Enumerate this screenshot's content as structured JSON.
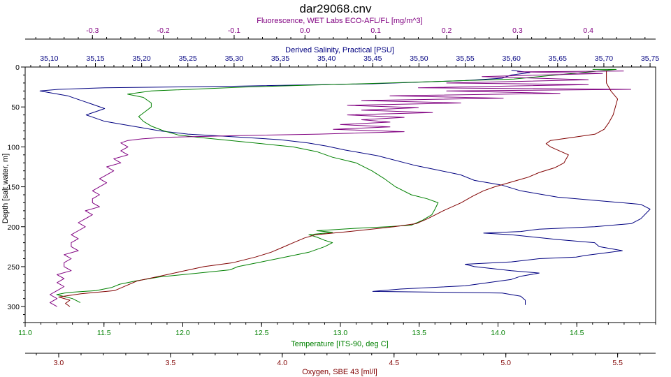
{
  "chart_data": {
    "type": "line",
    "title": "dar29068.cnv",
    "ylabel": "Depth [salt water, m]",
    "ylim": [
      320,
      0
    ],
    "yticks": [
      0,
      50,
      100,
      150,
      200,
      250,
      300
    ],
    "grid": false,
    "axes": {
      "fluorescence": {
        "label": "Fluorescence, WET Labs ECO-AFL/FL [mg/m^3]",
        "color": "#800080",
        "range": [
          -0.395,
          0.495
        ],
        "ticks": [
          -0.3,
          -0.2,
          -0.1,
          0.0,
          0.1,
          0.2,
          0.3,
          0.4
        ],
        "tick_labels": [
          "-0.3",
          "-0.2",
          "-0.1",
          "0.0",
          "0.1",
          "0.2",
          "0.3",
          "0.4"
        ]
      },
      "salinity": {
        "label": "Derived Salinity, Practical [PSU]",
        "color": "#000080",
        "range": [
          35.074,
          35.756
        ],
        "ticks": [
          35.1,
          35.15,
          35.2,
          35.25,
          35.3,
          35.35,
          35.4,
          35.45,
          35.5,
          35.55,
          35.6,
          35.65,
          35.7,
          35.75
        ],
        "tick_labels": [
          "35,10",
          "35,15",
          "35,20",
          "35,25",
          "35,30",
          "35,35",
          "35,40",
          "35,45",
          "35,50",
          "35,55",
          "35,60",
          "35,65",
          "35,70",
          "35,75"
        ]
      },
      "temperature": {
        "label": "Temperature [ITS-90, deg C]",
        "color": "#008000",
        "range": [
          11.0,
          15.0
        ],
        "ticks": [
          11.0,
          11.5,
          12.0,
          12.5,
          13.0,
          13.5,
          14.0,
          14.5
        ],
        "tick_labels": [
          "11.0",
          "11.5",
          "12.0",
          "12.5",
          "13.0",
          "13.5",
          "14.0",
          "14.5"
        ]
      },
      "oxygen": {
        "label": "Oxygen, SBE 43 [ml/l]",
        "color": "#800000",
        "range": [
          2.85,
          5.67
        ],
        "ticks": [
          3.0,
          3.5,
          4.0,
          4.5,
          5.0,
          5.5
        ],
        "tick_labels": [
          "3.0",
          "3.5",
          "4.0",
          "4.5",
          "5.0",
          "5.5"
        ]
      }
    },
    "series": [
      {
        "axis": "salinity",
        "color": "#000080",
        "points": [
          [
            35.615,
            298
          ],
          [
            35.615,
            292
          ],
          [
            35.61,
            287
          ],
          [
            35.59,
            283
          ],
          [
            35.45,
            281
          ],
          [
            35.48,
            278
          ],
          [
            35.55,
            274
          ],
          [
            35.6,
            266
          ],
          [
            35.61,
            262
          ],
          [
            35.63,
            258
          ],
          [
            35.6,
            255
          ],
          [
            35.56,
            250
          ],
          [
            35.55,
            247
          ],
          [
            35.6,
            244
          ],
          [
            35.63,
            240
          ],
          [
            35.67,
            238
          ],
          [
            35.68,
            236
          ],
          [
            35.7,
            233
          ],
          [
            35.72,
            230
          ],
          [
            35.695,
            225
          ],
          [
            35.69,
            220
          ],
          [
            35.65,
            216
          ],
          [
            35.6,
            210
          ],
          [
            35.57,
            208
          ],
          [
            35.61,
            206
          ],
          [
            35.63,
            203
          ],
          [
            35.69,
            200
          ],
          [
            35.73,
            196
          ],
          [
            35.74,
            190
          ],
          [
            35.75,
            178
          ],
          [
            35.74,
            172
          ],
          [
            35.7,
            168
          ],
          [
            35.65,
            163
          ],
          [
            35.61,
            155
          ],
          [
            35.59,
            148
          ],
          [
            35.56,
            142
          ],
          [
            35.545,
            135
          ],
          [
            35.52,
            129
          ],
          [
            35.495,
            123
          ],
          [
            35.455,
            111
          ],
          [
            35.42,
            104
          ],
          [
            35.4,
            99
          ],
          [
            35.38,
            95
          ],
          [
            35.35,
            91
          ],
          [
            35.31,
            88
          ],
          [
            35.28,
            86
          ],
          [
            35.25,
            84
          ],
          [
            35.22,
            80
          ],
          [
            35.2,
            76
          ],
          [
            35.18,
            72
          ],
          [
            35.16,
            68
          ],
          [
            35.15,
            64
          ],
          [
            35.14,
            60
          ],
          [
            35.15,
            56
          ],
          [
            35.16,
            52
          ],
          [
            35.15,
            48
          ],
          [
            35.14,
            44
          ],
          [
            35.13,
            40
          ],
          [
            35.12,
            36
          ],
          [
            35.1,
            32
          ],
          [
            35.09,
            30
          ],
          [
            35.11,
            28
          ],
          [
            35.16,
            26
          ],
          [
            35.3,
            24
          ],
          [
            35.45,
            21
          ],
          [
            35.55,
            17
          ],
          [
            35.59,
            14
          ],
          [
            35.6,
            10
          ],
          [
            35.62,
            7
          ],
          [
            35.6,
            4
          ]
        ]
      },
      {
        "axis": "temperature",
        "color": "#008000",
        "points": [
          [
            14.6,
            3
          ],
          [
            14.75,
            3
          ],
          [
            14.1,
            15
          ],
          [
            13.3,
            20
          ],
          [
            12.4,
            25
          ],
          [
            11.8,
            30
          ],
          [
            11.65,
            34
          ],
          [
            11.75,
            38
          ],
          [
            11.8,
            45
          ],
          [
            11.8,
            50
          ],
          [
            11.76,
            56
          ],
          [
            11.72,
            62
          ],
          [
            11.75,
            68
          ],
          [
            11.8,
            74
          ],
          [
            11.88,
            80
          ],
          [
            11.97,
            85
          ],
          [
            12.1,
            88
          ],
          [
            12.3,
            92
          ],
          [
            12.5,
            96
          ],
          [
            12.7,
            100
          ],
          [
            12.85,
            106
          ],
          [
            12.95,
            113
          ],
          [
            13.1,
            120
          ],
          [
            13.2,
            130
          ],
          [
            13.28,
            140
          ],
          [
            13.35,
            150
          ],
          [
            13.45,
            160
          ],
          [
            13.55,
            165
          ],
          [
            13.62,
            170
          ],
          [
            13.6,
            178
          ],
          [
            13.58,
            185
          ],
          [
            13.52,
            192
          ],
          [
            13.45,
            198
          ],
          [
            13.3,
            200
          ],
          [
            13.1,
            202
          ],
          [
            12.85,
            205
          ],
          [
            12.95,
            207
          ],
          [
            12.8,
            210
          ],
          [
            12.85,
            213
          ],
          [
            12.9,
            217
          ],
          [
            12.95,
            220
          ],
          [
            12.9,
            225
          ],
          [
            12.8,
            232
          ],
          [
            12.65,
            238
          ],
          [
            12.5,
            244
          ],
          [
            12.35,
            250
          ],
          [
            12.3,
            254
          ],
          [
            12.1,
            258
          ],
          [
            11.85,
            263
          ],
          [
            11.7,
            268
          ],
          [
            11.6,
            272
          ],
          [
            11.55,
            276
          ],
          [
            11.45,
            280
          ],
          [
            11.3,
            282
          ],
          [
            11.25,
            283
          ],
          [
            11.2,
            285
          ],
          [
            11.3,
            290
          ],
          [
            11.35,
            295
          ]
        ]
      },
      {
        "axis": "fluorescence",
        "color": "#800080",
        "points": [
          [
            0.45,
            5
          ],
          [
            0.3,
            6
          ],
          [
            0.42,
            8
          ],
          [
            0.25,
            12
          ],
          [
            0.4,
            16
          ],
          [
            0.2,
            20
          ],
          [
            0.4,
            22
          ],
          [
            0.16,
            26
          ],
          [
            0.46,
            28
          ],
          [
            0.2,
            30
          ],
          [
            0.36,
            33
          ],
          [
            0.12,
            36
          ],
          [
            0.28,
            39
          ],
          [
            0.08,
            42
          ],
          [
            0.22,
            45
          ],
          [
            0.06,
            48
          ],
          [
            0.16,
            51
          ],
          [
            0.08,
            54
          ],
          [
            0.18,
            57
          ],
          [
            0.06,
            60
          ],
          [
            0.14,
            63
          ],
          [
            0.08,
            66
          ],
          [
            0.12,
            69
          ],
          [
            0.05,
            72
          ],
          [
            0.12,
            75
          ],
          [
            0.04,
            78
          ],
          [
            0.14,
            81
          ],
          [
            0.02,
            84
          ],
          [
            -0.1,
            86
          ],
          [
            -0.2,
            88
          ],
          [
            -0.23,
            90
          ],
          [
            -0.25,
            92
          ],
          [
            -0.26,
            95
          ],
          [
            -0.25,
            100
          ],
          [
            -0.26,
            105
          ],
          [
            -0.25,
            110
          ],
          [
            -0.27,
            115
          ],
          [
            -0.26,
            120
          ],
          [
            -0.28,
            125
          ],
          [
            -0.27,
            130
          ],
          [
            -0.28,
            135
          ],
          [
            -0.29,
            140
          ],
          [
            -0.28,
            145
          ],
          [
            -0.29,
            150
          ],
          [
            -0.3,
            155
          ],
          [
            -0.29,
            160
          ],
          [
            -0.3,
            165
          ],
          [
            -0.3,
            170
          ],
          [
            -0.29,
            175
          ],
          [
            -0.31,
            180
          ],
          [
            -0.3,
            185
          ],
          [
            -0.31,
            190
          ],
          [
            -0.32,
            195
          ],
          [
            -0.31,
            200
          ],
          [
            -0.32,
            205
          ],
          [
            -0.33,
            210
          ],
          [
            -0.32,
            215
          ],
          [
            -0.33,
            220
          ],
          [
            -0.33,
            225
          ],
          [
            -0.32,
            230
          ],
          [
            -0.34,
            235
          ],
          [
            -0.33,
            240
          ],
          [
            -0.34,
            245
          ],
          [
            -0.34,
            250
          ],
          [
            -0.33,
            255
          ],
          [
            -0.35,
            260
          ],
          [
            -0.34,
            265
          ],
          [
            -0.35,
            270
          ],
          [
            -0.34,
            275
          ],
          [
            -0.35,
            280
          ],
          [
            -0.36,
            285
          ],
          [
            -0.35,
            290
          ],
          [
            -0.36,
            295
          ],
          [
            -0.35,
            300
          ]
        ]
      },
      {
        "axis": "oxygen",
        "color": "#800000",
        "points": [
          [
            5.45,
            5
          ],
          [
            5.45,
            12
          ],
          [
            5.45,
            20
          ],
          [
            5.47,
            30
          ],
          [
            5.5,
            40
          ],
          [
            5.49,
            50
          ],
          [
            5.48,
            60
          ],
          [
            5.46,
            70
          ],
          [
            5.44,
            78
          ],
          [
            5.4,
            84
          ],
          [
            5.3,
            88
          ],
          [
            5.2,
            92
          ],
          [
            5.18,
            96
          ],
          [
            5.2,
            100
          ],
          [
            5.28,
            110
          ],
          [
            5.26,
            120
          ],
          [
            5.22,
            126
          ],
          [
            5.15,
            132
          ],
          [
            5.1,
            138
          ],
          [
            5.05,
            142
          ],
          [
            5.0,
            146
          ],
          [
            4.95,
            150
          ],
          [
            4.9,
            155
          ],
          [
            4.85,
            162
          ],
          [
            4.8,
            170
          ],
          [
            4.72,
            180
          ],
          [
            4.65,
            190
          ],
          [
            4.6,
            196
          ],
          [
            4.5,
            200
          ],
          [
            4.4,
            203
          ],
          [
            4.3,
            206
          ],
          [
            4.15,
            210
          ],
          [
            4.1,
            214
          ],
          [
            4.05,
            220
          ],
          [
            4.0,
            226
          ],
          [
            3.95,
            232
          ],
          [
            3.88,
            238
          ],
          [
            3.78,
            245
          ],
          [
            3.65,
            250
          ],
          [
            3.55,
            256
          ],
          [
            3.45,
            262
          ],
          [
            3.35,
            268
          ],
          [
            3.3,
            274
          ],
          [
            3.25,
            280
          ],
          [
            3.1,
            284
          ],
          [
            3.0,
            288
          ],
          [
            3.05,
            292
          ],
          [
            3.03,
            296
          ],
          [
            3.05,
            300
          ]
        ]
      }
    ]
  }
}
